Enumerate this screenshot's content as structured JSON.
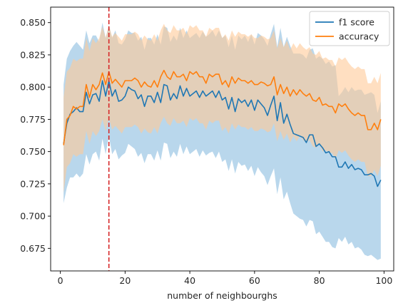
{
  "chart_data": {
    "type": "line",
    "xlabel": "number of neighbourghs",
    "ylabel": "",
    "title": "",
    "xlim": [
      -3,
      103
    ],
    "ylim": [
      0.6575,
      0.862
    ],
    "x_ticks": [
      0,
      20,
      40,
      60,
      80,
      100
    ],
    "x_tick_labels": [
      "0",
      "20",
      "40",
      "60",
      "80",
      "100"
    ],
    "y_ticks": [
      0.675,
      0.7,
      0.725,
      0.75,
      0.775,
      0.8,
      0.825,
      0.85
    ],
    "y_tick_labels": [
      "0.675",
      "0.700",
      "0.725",
      "0.750",
      "0.775",
      "0.800",
      "0.825",
      "0.850"
    ],
    "legend_position": "top-right",
    "vline": {
      "x": 15,
      "color": "#d62728",
      "style": "dashed"
    },
    "x": [
      1,
      2,
      3,
      4,
      5,
      6,
      7,
      8,
      9,
      10,
      11,
      12,
      13,
      14,
      15,
      16,
      17,
      18,
      19,
      20,
      21,
      22,
      23,
      24,
      25,
      26,
      27,
      28,
      29,
      30,
      31,
      32,
      33,
      34,
      35,
      36,
      37,
      38,
      39,
      40,
      41,
      42,
      43,
      44,
      45,
      46,
      47,
      48,
      49,
      50,
      51,
      52,
      53,
      54,
      55,
      56,
      57,
      58,
      59,
      60,
      61,
      62,
      63,
      64,
      65,
      66,
      67,
      68,
      69,
      70,
      71,
      72,
      73,
      74,
      75,
      76,
      77,
      78,
      79,
      80,
      81,
      82,
      83,
      84,
      85,
      86,
      87,
      88,
      89,
      90,
      91,
      92,
      93,
      94,
      95,
      96,
      97,
      98,
      99
    ],
    "series": [
      {
        "name": "f1 score",
        "color": "#1f77b4",
        "band_color": "#9ec7e4",
        "values": [
          0.756,
          0.772,
          0.779,
          0.781,
          0.784,
          0.781,
          0.781,
          0.796,
          0.787,
          0.794,
          0.795,
          0.789,
          0.805,
          0.793,
          0.805,
          0.793,
          0.798,
          0.789,
          0.79,
          0.793,
          0.8,
          0.798,
          0.797,
          0.791,
          0.794,
          0.785,
          0.793,
          0.793,
          0.788,
          0.796,
          0.788,
          0.802,
          0.801,
          0.79,
          0.795,
          0.791,
          0.801,
          0.793,
          0.799,
          0.793,
          0.795,
          0.797,
          0.792,
          0.797,
          0.793,
          0.795,
          0.797,
          0.792,
          0.797,
          0.79,
          0.792,
          0.783,
          0.792,
          0.781,
          0.791,
          0.788,
          0.79,
          0.785,
          0.79,
          0.782,
          0.79,
          0.787,
          0.784,
          0.778,
          0.786,
          0.793,
          0.774,
          0.788,
          0.772,
          0.779,
          0.771,
          0.764,
          0.763,
          0.762,
          0.761,
          0.757,
          0.763,
          0.763,
          0.754,
          0.756,
          0.753,
          0.749,
          0.75,
          0.746,
          0.746,
          0.738,
          0.738,
          0.742,
          0.737,
          0.74,
          0.736,
          0.737,
          0.736,
          0.732,
          0.732,
          0.733,
          0.731,
          0.723,
          0.728
        ],
        "band_lower": [
          0.71,
          0.722,
          0.73,
          0.73,
          0.733,
          0.73,
          0.733,
          0.748,
          0.74,
          0.748,
          0.75,
          0.743,
          0.76,
          0.748,
          0.762,
          0.748,
          0.752,
          0.744,
          0.747,
          0.749,
          0.756,
          0.754,
          0.752,
          0.746,
          0.749,
          0.741,
          0.748,
          0.748,
          0.743,
          0.751,
          0.743,
          0.757,
          0.756,
          0.745,
          0.75,
          0.746,
          0.756,
          0.748,
          0.754,
          0.748,
          0.75,
          0.752,
          0.746,
          0.751,
          0.747,
          0.749,
          0.75,
          0.745,
          0.75,
          0.742,
          0.744,
          0.735,
          0.744,
          0.733,
          0.742,
          0.739,
          0.74,
          0.735,
          0.739,
          0.731,
          0.738,
          0.734,
          0.731,
          0.724,
          0.731,
          0.737,
          0.717,
          0.73,
          0.713,
          0.719,
          0.71,
          0.702,
          0.7,
          0.698,
          0.697,
          0.692,
          0.697,
          0.696,
          0.686,
          0.688,
          0.684,
          0.68,
          0.68,
          0.676,
          0.675,
          0.683,
          0.68,
          0.684,
          0.678,
          0.68,
          0.675,
          0.676,
          0.674,
          0.67,
          0.669,
          0.67,
          0.668,
          0.666,
          0.667
        ],
        "band_upper": [
          0.802,
          0.822,
          0.828,
          0.832,
          0.835,
          0.832,
          0.829,
          0.844,
          0.834,
          0.84,
          0.84,
          0.835,
          0.85,
          0.838,
          0.848,
          0.838,
          0.844,
          0.834,
          0.833,
          0.837,
          0.844,
          0.842,
          0.842,
          0.836,
          0.839,
          0.829,
          0.838,
          0.838,
          0.833,
          0.841,
          0.833,
          0.847,
          0.846,
          0.835,
          0.84,
          0.836,
          0.846,
          0.838,
          0.844,
          0.838,
          0.84,
          0.842,
          0.838,
          0.843,
          0.839,
          0.841,
          0.844,
          0.839,
          0.844,
          0.838,
          0.84,
          0.831,
          0.84,
          0.829,
          0.84,
          0.837,
          0.84,
          0.835,
          0.841,
          0.833,
          0.842,
          0.84,
          0.837,
          0.832,
          0.841,
          0.849,
          0.831,
          0.846,
          0.831,
          0.839,
          0.832,
          0.826,
          0.826,
          0.826,
          0.825,
          0.822,
          0.829,
          0.83,
          0.822,
          0.824,
          0.822,
          0.818,
          0.82,
          0.816,
          0.817,
          0.793,
          0.796,
          0.8,
          0.796,
          0.8,
          0.797,
          0.798,
          0.798,
          0.794,
          0.795,
          0.796,
          0.794,
          0.78,
          0.789
        ]
      },
      {
        "name": "accuracy",
        "color": "#ff7f0e",
        "band_color": "#ffc997",
        "values": [
          0.755,
          0.775,
          0.778,
          0.785,
          0.783,
          0.785,
          0.785,
          0.802,
          0.792,
          0.802,
          0.798,
          0.802,
          0.811,
          0.802,
          0.812,
          0.803,
          0.806,
          0.803,
          0.8,
          0.805,
          0.805,
          0.805,
          0.807,
          0.805,
          0.8,
          0.804,
          0.801,
          0.8,
          0.805,
          0.8,
          0.808,
          0.813,
          0.808,
          0.806,
          0.812,
          0.808,
          0.808,
          0.81,
          0.805,
          0.812,
          0.81,
          0.812,
          0.808,
          0.808,
          0.803,
          0.81,
          0.808,
          0.81,
          0.81,
          0.802,
          0.805,
          0.8,
          0.808,
          0.803,
          0.807,
          0.805,
          0.805,
          0.803,
          0.805,
          0.802,
          0.802,
          0.804,
          0.803,
          0.801,
          0.802,
          0.808,
          0.794,
          0.802,
          0.795,
          0.8,
          0.793,
          0.798,
          0.794,
          0.798,
          0.795,
          0.793,
          0.795,
          0.79,
          0.789,
          0.792,
          0.786,
          0.787,
          0.785,
          0.785,
          0.78,
          0.787,
          0.785,
          0.787,
          0.783,
          0.78,
          0.778,
          0.78,
          0.778,
          0.778,
          0.767,
          0.767,
          0.772,
          0.767,
          0.775
        ],
        "band_lower": [
          0.718,
          0.738,
          0.741,
          0.748,
          0.746,
          0.748,
          0.748,
          0.766,
          0.756,
          0.766,
          0.762,
          0.766,
          0.775,
          0.766,
          0.776,
          0.767,
          0.77,
          0.767,
          0.764,
          0.769,
          0.769,
          0.769,
          0.771,
          0.769,
          0.764,
          0.768,
          0.765,
          0.764,
          0.769,
          0.764,
          0.772,
          0.777,
          0.772,
          0.77,
          0.776,
          0.772,
          0.772,
          0.774,
          0.769,
          0.776,
          0.774,
          0.776,
          0.772,
          0.772,
          0.767,
          0.774,
          0.772,
          0.774,
          0.774,
          0.766,
          0.769,
          0.764,
          0.772,
          0.767,
          0.771,
          0.769,
          0.769,
          0.767,
          0.769,
          0.766,
          0.766,
          0.768,
          0.767,
          0.765,
          0.766,
          0.772,
          0.758,
          0.766,
          0.759,
          0.764,
          0.757,
          0.762,
          0.758,
          0.762,
          0.759,
          0.757,
          0.759,
          0.754,
          0.753,
          0.756,
          0.75,
          0.751,
          0.749,
          0.749,
          0.744,
          0.751,
          0.749,
          0.751,
          0.747,
          0.744,
          0.742,
          0.744,
          0.742,
          0.742,
          0.731,
          0.731,
          0.736,
          0.731,
          0.739
        ],
        "band_upper": [
          0.792,
          0.812,
          0.815,
          0.822,
          0.82,
          0.822,
          0.822,
          0.838,
          0.828,
          0.838,
          0.834,
          0.838,
          0.847,
          0.838,
          0.848,
          0.839,
          0.842,
          0.839,
          0.836,
          0.841,
          0.841,
          0.841,
          0.843,
          0.841,
          0.836,
          0.84,
          0.837,
          0.836,
          0.841,
          0.836,
          0.844,
          0.849,
          0.844,
          0.842,
          0.848,
          0.844,
          0.844,
          0.846,
          0.841,
          0.848,
          0.846,
          0.848,
          0.844,
          0.844,
          0.839,
          0.846,
          0.844,
          0.846,
          0.846,
          0.838,
          0.841,
          0.836,
          0.844,
          0.839,
          0.843,
          0.841,
          0.841,
          0.839,
          0.841,
          0.838,
          0.838,
          0.84,
          0.839,
          0.837,
          0.838,
          0.844,
          0.83,
          0.838,
          0.831,
          0.836,
          0.829,
          0.834,
          0.83,
          0.834,
          0.831,
          0.829,
          0.831,
          0.826,
          0.825,
          0.828,
          0.822,
          0.823,
          0.821,
          0.821,
          0.816,
          0.823,
          0.821,
          0.823,
          0.819,
          0.816,
          0.814,
          0.816,
          0.814,
          0.814,
          0.803,
          0.803,
          0.808,
          0.803,
          0.811
        ]
      }
    ]
  }
}
